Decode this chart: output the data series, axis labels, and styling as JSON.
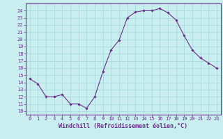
{
  "x": [
    0,
    1,
    2,
    3,
    4,
    5,
    6,
    7,
    8,
    9,
    10,
    11,
    12,
    13,
    14,
    15,
    16,
    17,
    18,
    19,
    20,
    21,
    22,
    23
  ],
  "y": [
    14.5,
    13.8,
    12.0,
    12.0,
    12.3,
    11.0,
    11.0,
    10.4,
    12.0,
    15.5,
    18.5,
    19.9,
    23.0,
    23.8,
    24.0,
    24.0,
    24.3,
    23.7,
    22.7,
    20.5,
    18.5,
    17.4,
    16.7,
    16.0
  ],
  "xlabel": "Windchill (Refroidissement éolien,°C)",
  "xlim": [
    -0.5,
    23.5
  ],
  "ylim": [
    9.5,
    25.0
  ],
  "yticks": [
    10,
    11,
    12,
    13,
    14,
    15,
    16,
    17,
    18,
    19,
    20,
    21,
    22,
    23,
    24
  ],
  "xticks": [
    0,
    1,
    2,
    3,
    4,
    5,
    6,
    7,
    8,
    9,
    10,
    11,
    12,
    13,
    14,
    15,
    16,
    17,
    18,
    19,
    20,
    21,
    22,
    23
  ],
  "line_color": "#6B2D8B",
  "marker": "D",
  "marker_size": 1.8,
  "background_color": "#c8eef0",
  "grid_color": "#a0d8d8",
  "font_color": "#6B2D8B",
  "tick_fontsize": 5.0,
  "xlabel_fontsize": 6.0
}
